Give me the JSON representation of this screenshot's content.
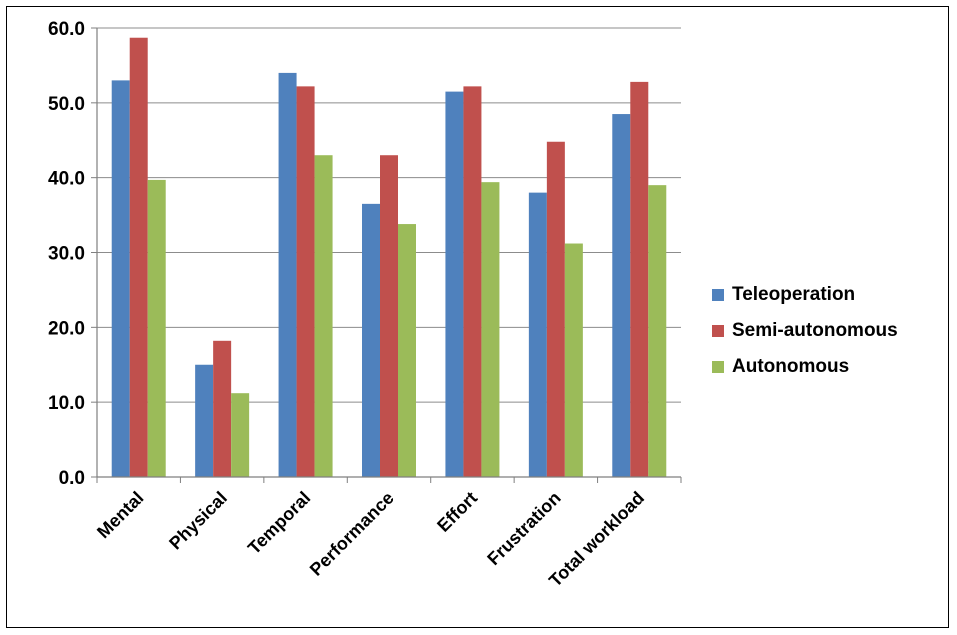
{
  "chart_data": {
    "type": "bar",
    "title": "",
    "xlabel": "",
    "ylabel": "",
    "ylim": [
      0,
      60
    ],
    "yticks": [
      "0.0",
      "10.0",
      "20.0",
      "30.0",
      "40.0",
      "50.0",
      "60.0"
    ],
    "grid": true,
    "legend_position": "right",
    "categories": [
      "Mental",
      "Physical",
      "Temporal",
      "Performance",
      "Effort",
      "Frustration",
      "Total workload"
    ],
    "series": [
      {
        "name": "Teleoperation",
        "color": "#4F81BD",
        "values": [
          53.0,
          15.0,
          54.0,
          36.5,
          51.5,
          38.0,
          48.5
        ]
      },
      {
        "name": "Semi-autonomous",
        "color": "#C0504D",
        "values": [
          58.7,
          18.2,
          52.2,
          43.0,
          52.2,
          44.8,
          52.8
        ]
      },
      {
        "name": "Autonomous",
        "color": "#9BBB59",
        "values": [
          39.7,
          11.2,
          43.0,
          33.8,
          39.4,
          31.2,
          39.0
        ]
      }
    ]
  }
}
